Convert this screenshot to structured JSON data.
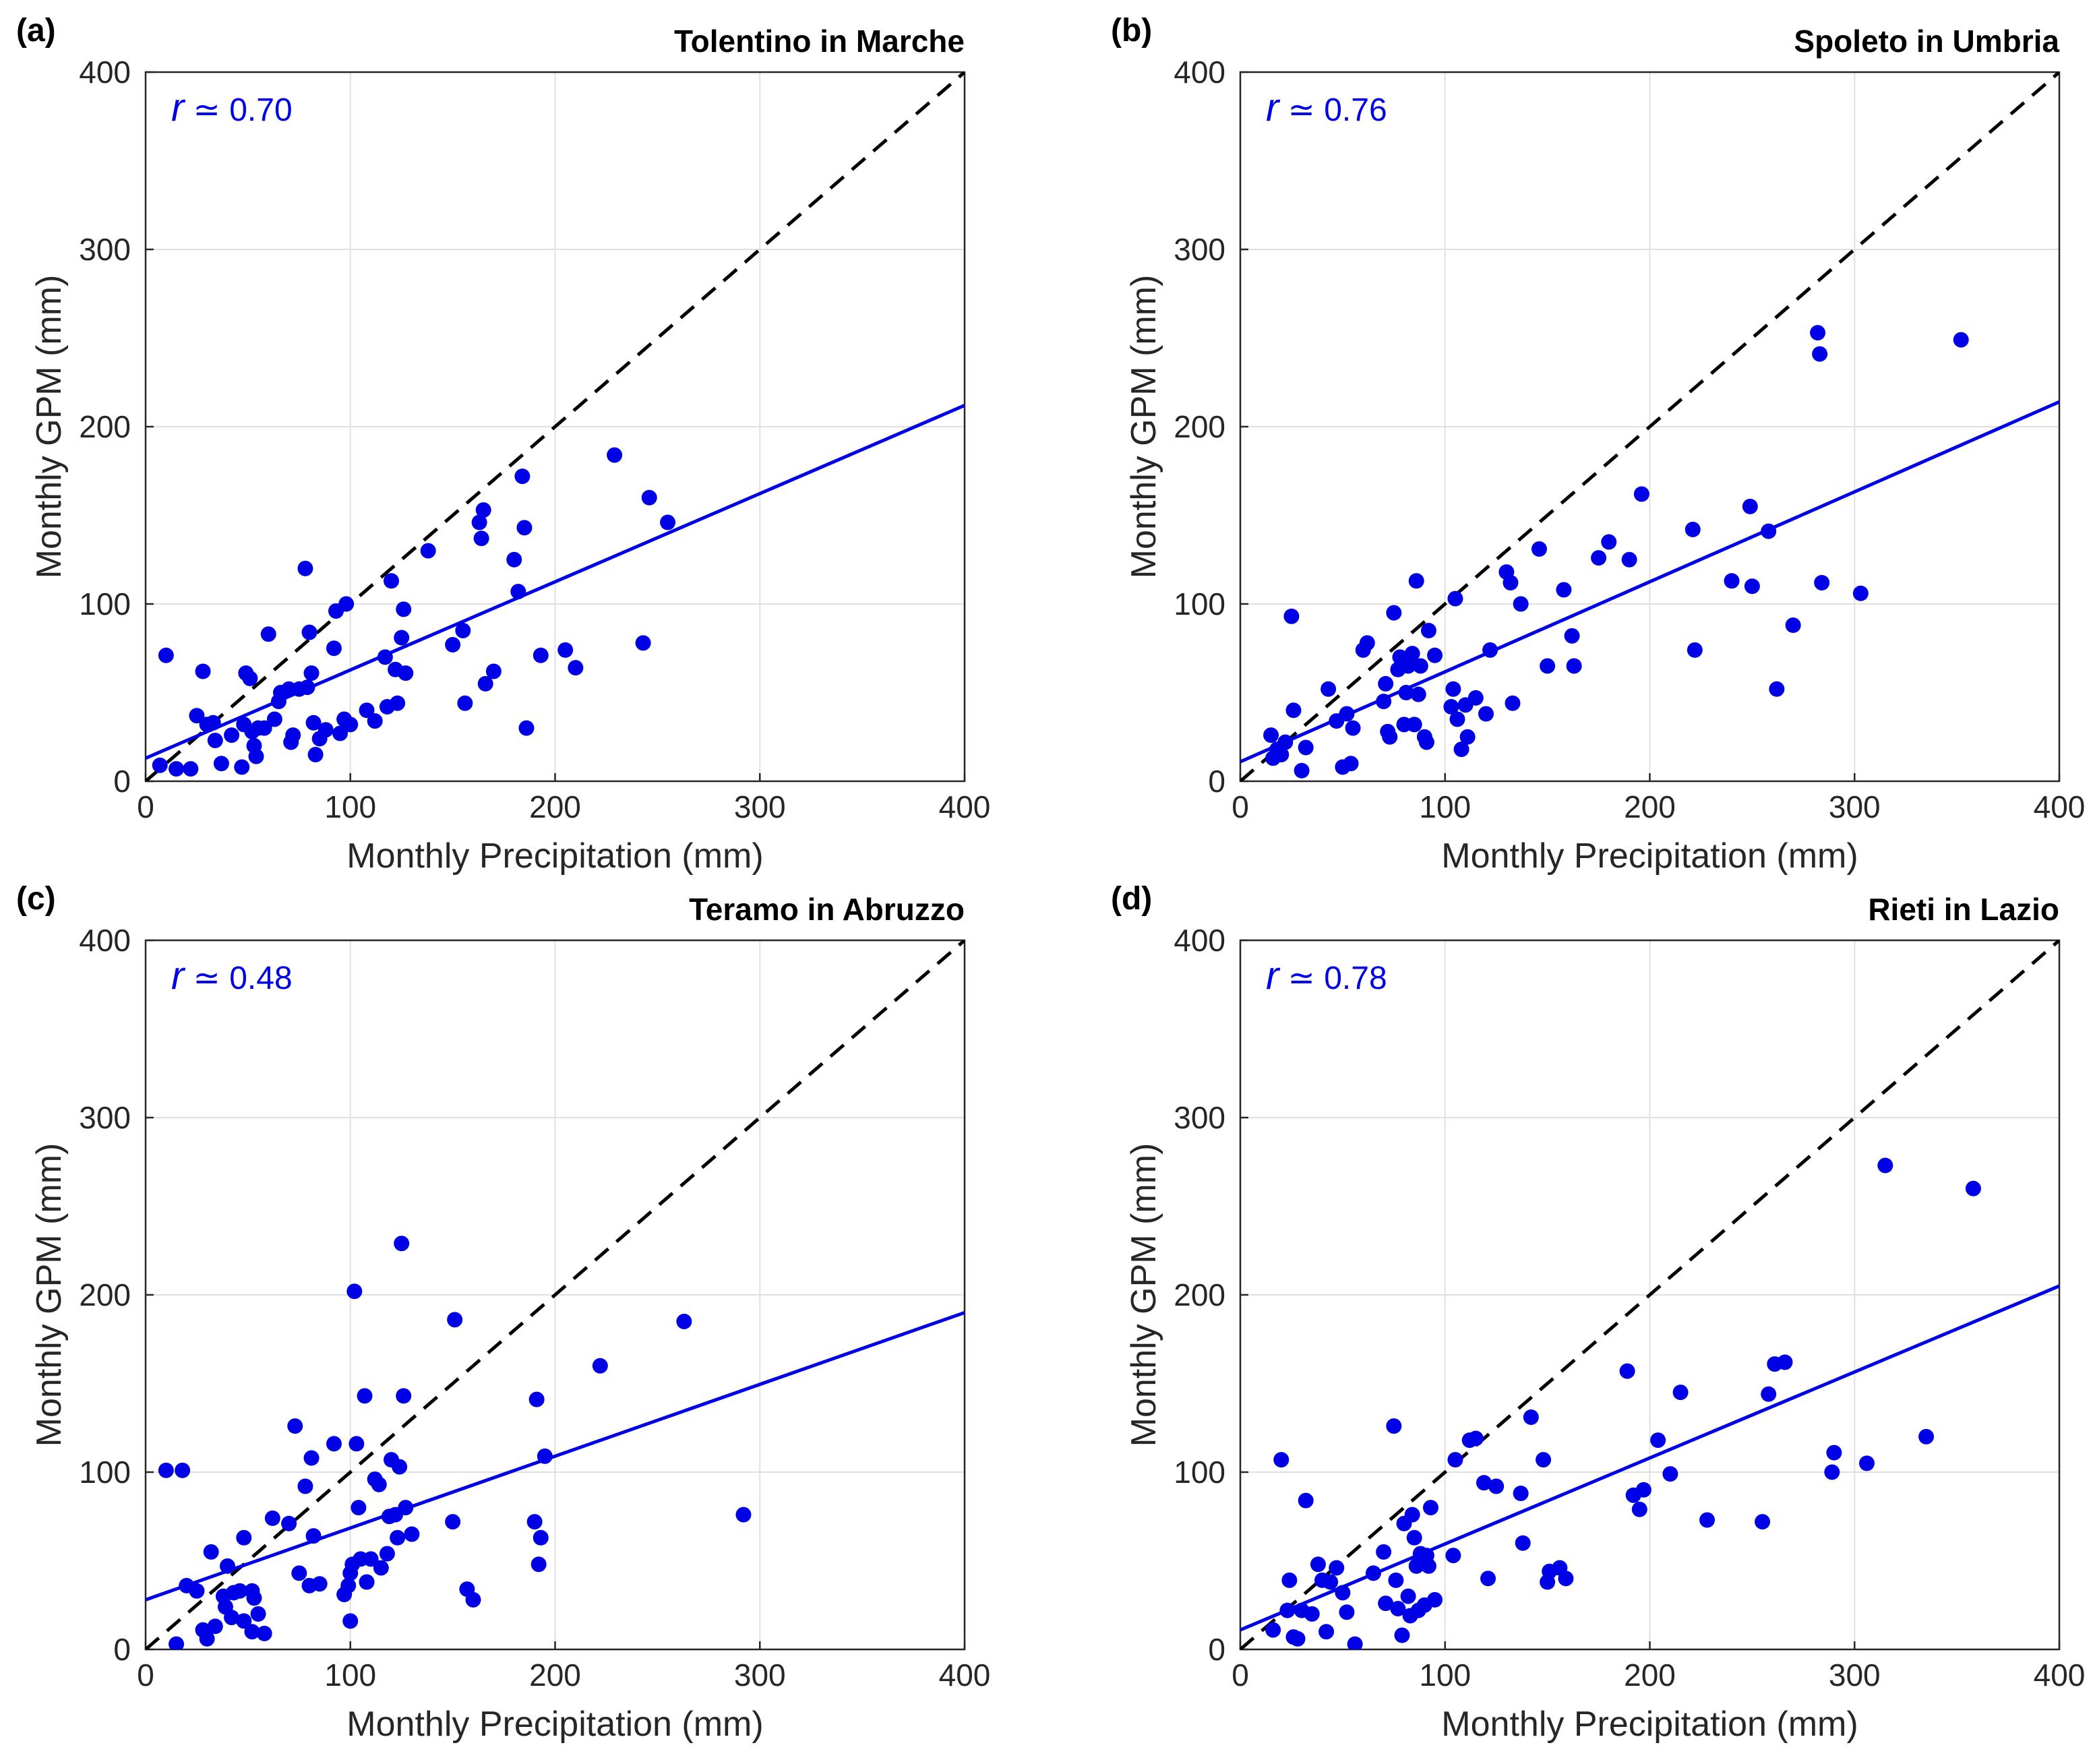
{
  "colors": {
    "points": "#0000e6",
    "fit_line": "#0000e6",
    "identity_line": "#000000",
    "grid": "#e0e0e0",
    "axes": "#262626"
  },
  "chart_data": [
    {
      "type": "scatter",
      "panel_label": "(a)",
      "title": "Tolentino in Marche",
      "xlabel": "Monthly Precipitation (mm)",
      "ylabel": "Monthly GPM (mm)",
      "xlim": [
        0,
        400
      ],
      "ylim": [
        0,
        400
      ],
      "xticks": [
        "0",
        "100",
        "200",
        "300",
        "400"
      ],
      "yticks": [
        "0",
        "100",
        "200",
        "300",
        "400"
      ],
      "grid": true,
      "correlation": {
        "symbol": "r",
        "relation": "≃",
        "value": "0.70"
      },
      "fit_line": {
        "x": [
          0,
          400
        ],
        "y": [
          13,
          212
        ]
      },
      "identity_line": {
        "x": [
          0,
          400
        ],
        "y": [
          0,
          400
        ]
      },
      "points": [
        [
          7,
          9
        ],
        [
          10,
          71
        ],
        [
          15,
          7
        ],
        [
          22,
          7
        ],
        [
          25,
          37
        ],
        [
          28,
          62
        ],
        [
          30,
          32
        ],
        [
          33,
          33
        ],
        [
          34,
          23
        ],
        [
          37,
          10
        ],
        [
          42,
          26
        ],
        [
          47,
          8
        ],
        [
          48,
          32
        ],
        [
          49,
          61
        ],
        [
          51,
          58
        ],
        [
          52,
          28
        ],
        [
          53,
          20
        ],
        [
          54,
          14
        ],
        [
          55,
          30
        ],
        [
          58,
          30
        ],
        [
          60,
          83
        ],
        [
          63,
          35
        ],
        [
          65,
          45
        ],
        [
          66,
          50
        ],
        [
          70,
          52
        ],
        [
          71,
          22
        ],
        [
          72,
          26
        ],
        [
          75,
          52
        ],
        [
          78,
          120
        ],
        [
          79,
          53
        ],
        [
          80,
          84
        ],
        [
          81,
          61
        ],
        [
          82,
          33
        ],
        [
          83,
          15
        ],
        [
          85,
          24
        ],
        [
          88,
          29
        ],
        [
          92,
          75
        ],
        [
          93,
          96
        ],
        [
          95,
          27
        ],
        [
          97,
          35
        ],
        [
          98,
          100
        ],
        [
          100,
          32
        ],
        [
          108,
          40
        ],
        [
          112,
          34
        ],
        [
          117,
          70
        ],
        [
          118,
          42
        ],
        [
          120,
          113
        ],
        [
          122,
          63
        ],
        [
          123,
          44
        ],
        [
          125,
          81
        ],
        [
          126,
          97
        ],
        [
          127,
          61
        ],
        [
          138,
          130
        ],
        [
          150,
          77
        ],
        [
          155,
          85
        ],
        [
          156,
          44
        ],
        [
          163,
          146
        ],
        [
          164,
          137
        ],
        [
          165,
          153
        ],
        [
          166,
          55
        ],
        [
          170,
          62
        ],
        [
          180,
          125
        ],
        [
          182,
          107
        ],
        [
          184,
          172
        ],
        [
          185,
          143
        ],
        [
          186,
          30
        ],
        [
          193,
          71
        ],
        [
          205,
          74
        ],
        [
          210,
          64
        ],
        [
          229,
          184
        ],
        [
          243,
          78
        ],
        [
          246,
          160
        ],
        [
          255,
          146
        ]
      ]
    },
    {
      "type": "scatter",
      "panel_label": "(b)",
      "title": "Spoleto in Umbria",
      "xlabel": "Monthly Precipitation (mm)",
      "ylabel": "Monthly GPM (mm)",
      "xlim": [
        0,
        400
      ],
      "ylim": [
        0,
        400
      ],
      "xticks": [
        "0",
        "100",
        "200",
        "300",
        "400"
      ],
      "yticks": [
        "0",
        "100",
        "200",
        "300",
        "400"
      ],
      "grid": true,
      "correlation": {
        "symbol": "r",
        "relation": "≃",
        "value": "0.76"
      },
      "fit_line": {
        "x": [
          0,
          400
        ],
        "y": [
          11,
          214
        ]
      },
      "identity_line": {
        "x": [
          0,
          400
        ],
        "y": [
          0,
          400
        ]
      },
      "points": [
        [
          15,
          26
        ],
        [
          16,
          13
        ],
        [
          18,
          18
        ],
        [
          20,
          15
        ],
        [
          22,
          22
        ],
        [
          25,
          93
        ],
        [
          26,
          40
        ],
        [
          30,
          6
        ],
        [
          32,
          19
        ],
        [
          43,
          52
        ],
        [
          47,
          34
        ],
        [
          50,
          8
        ],
        [
          52,
          38
        ],
        [
          54,
          10
        ],
        [
          55,
          30
        ],
        [
          60,
          74
        ],
        [
          62,
          78
        ],
        [
          70,
          45
        ],
        [
          71,
          55
        ],
        [
          72,
          28
        ],
        [
          73,
          25
        ],
        [
          75,
          95
        ],
        [
          77,
          63
        ],
        [
          78,
          70
        ],
        [
          80,
          32
        ],
        [
          81,
          50
        ],
        [
          82,
          65
        ],
        [
          84,
          72
        ],
        [
          85,
          32
        ],
        [
          86,
          113
        ],
        [
          87,
          49
        ],
        [
          88,
          65
        ],
        [
          90,
          25
        ],
        [
          91,
          22
        ],
        [
          92,
          85
        ],
        [
          95,
          71
        ],
        [
          103,
          42
        ],
        [
          104,
          52
        ],
        [
          105,
          103
        ],
        [
          106,
          35
        ],
        [
          108,
          18
        ],
        [
          110,
          43
        ],
        [
          111,
          25
        ],
        [
          115,
          47
        ],
        [
          120,
          38
        ],
        [
          122,
          74
        ],
        [
          130,
          118
        ],
        [
          132,
          112
        ],
        [
          133,
          44
        ],
        [
          137,
          100
        ],
        [
          146,
          131
        ],
        [
          150,
          65
        ],
        [
          158,
          108
        ],
        [
          162,
          82
        ],
        [
          163,
          65
        ],
        [
          175,
          126
        ],
        [
          180,
          135
        ],
        [
          190,
          125
        ],
        [
          196,
          162
        ],
        [
          221,
          142
        ],
        [
          222,
          74
        ],
        [
          240,
          113
        ],
        [
          249,
          155
        ],
        [
          250,
          110
        ],
        [
          258,
          141
        ],
        [
          262,
          52
        ],
        [
          270,
          88
        ],
        [
          282,
          253
        ],
        [
          283,
          241
        ],
        [
          284,
          112
        ],
        [
          303,
          106
        ],
        [
          352,
          249
        ]
      ]
    },
    {
      "type": "scatter",
      "panel_label": "(c)",
      "title": "Teramo in Abruzzo",
      "xlabel": "Monthly Precipitation (mm)",
      "ylabel": "Monthly GPM (mm)",
      "xlim": [
        0,
        400
      ],
      "ylim": [
        0,
        400
      ],
      "xticks": [
        "0",
        "100",
        "200",
        "300",
        "400"
      ],
      "yticks": [
        "0",
        "100",
        "200",
        "300",
        "400"
      ],
      "grid": true,
      "correlation": {
        "symbol": "r",
        "relation": "≃",
        "value": "0.48"
      },
      "fit_line": {
        "x": [
          0,
          400
        ],
        "y": [
          28,
          190
        ]
      },
      "identity_line": {
        "x": [
          0,
          400
        ],
        "y": [
          0,
          400
        ]
      },
      "points": [
        [
          10,
          101
        ],
        [
          15,
          3
        ],
        [
          18,
          101
        ],
        [
          20,
          36
        ],
        [
          25,
          33
        ],
        [
          28,
          11
        ],
        [
          30,
          6
        ],
        [
          32,
          55
        ],
        [
          34,
          13
        ],
        [
          38,
          30
        ],
        [
          39,
          24
        ],
        [
          40,
          47
        ],
        [
          42,
          18
        ],
        [
          43,
          32
        ],
        [
          46,
          33
        ],
        [
          48,
          16
        ],
        [
          48,
          63
        ],
        [
          52,
          10
        ],
        [
          52,
          33
        ],
        [
          53,
          29
        ],
        [
          55,
          20
        ],
        [
          58,
          9
        ],
        [
          62,
          74
        ],
        [
          70,
          71
        ],
        [
          73,
          126
        ],
        [
          75,
          43
        ],
        [
          78,
          92
        ],
        [
          80,
          36
        ],
        [
          81,
          108
        ],
        [
          82,
          64
        ],
        [
          85,
          37
        ],
        [
          92,
          116
        ],
        [
          97,
          31
        ],
        [
          99,
          36
        ],
        [
          100,
          16
        ],
        [
          100,
          43
        ],
        [
          101,
          48
        ],
        [
          102,
          202
        ],
        [
          103,
          116
        ],
        [
          104,
          80
        ],
        [
          105,
          51
        ],
        [
          107,
          143
        ],
        [
          108,
          38
        ],
        [
          110,
          51
        ],
        [
          112,
          96
        ],
        [
          114,
          93
        ],
        [
          115,
          46
        ],
        [
          118,
          54
        ],
        [
          119,
          75
        ],
        [
          120,
          107
        ],
        [
          122,
          76
        ],
        [
          123,
          63
        ],
        [
          124,
          103
        ],
        [
          125,
          229
        ],
        [
          126,
          143
        ],
        [
          127,
          80
        ],
        [
          130,
          65
        ],
        [
          150,
          72
        ],
        [
          151,
          186
        ],
        [
          157,
          34
        ],
        [
          160,
          28
        ],
        [
          190,
          72
        ],
        [
          191,
          141
        ],
        [
          192,
          48
        ],
        [
          193,
          63
        ],
        [
          195,
          109
        ],
        [
          222,
          160
        ],
        [
          263,
          185
        ],
        [
          292,
          76
        ]
      ]
    },
    {
      "type": "scatter",
      "panel_label": "(d)",
      "title": "Rieti in Lazio",
      "xlabel": "Monthly Precipitation (mm)",
      "ylabel": "Monthly GPM (mm)",
      "xlim": [
        0,
        400
      ],
      "ylim": [
        0,
        400
      ],
      "xticks": [
        "0",
        "100",
        "200",
        "300",
        "400"
      ],
      "yticks": [
        "0",
        "100",
        "200",
        "300",
        "400"
      ],
      "grid": true,
      "correlation": {
        "symbol": "r",
        "relation": "≃",
        "value": "0.78"
      },
      "fit_line": {
        "x": [
          0,
          400
        ],
        "y": [
          11,
          205
        ]
      },
      "identity_line": {
        "x": [
          0,
          400
        ],
        "y": [
          0,
          400
        ]
      },
      "points": [
        [
          16,
          11
        ],
        [
          20,
          107
        ],
        [
          23,
          22
        ],
        [
          24,
          39
        ],
        [
          26,
          7
        ],
        [
          28,
          6
        ],
        [
          30,
          22
        ],
        [
          32,
          84
        ],
        [
          35,
          20
        ],
        [
          38,
          48
        ],
        [
          40,
          39
        ],
        [
          42,
          10
        ],
        [
          44,
          38
        ],
        [
          47,
          46
        ],
        [
          50,
          32
        ],
        [
          52,
          21
        ],
        [
          56,
          3
        ],
        [
          65,
          43
        ],
        [
          70,
          55
        ],
        [
          71,
          26
        ],
        [
          75,
          126
        ],
        [
          76,
          39
        ],
        [
          77,
          23
        ],
        [
          79,
          8
        ],
        [
          80,
          71
        ],
        [
          82,
          30
        ],
        [
          83,
          19
        ],
        [
          84,
          76
        ],
        [
          85,
          63
        ],
        [
          86,
          47
        ],
        [
          87,
          22
        ],
        [
          88,
          54
        ],
        [
          90,
          25
        ],
        [
          91,
          53
        ],
        [
          92,
          47
        ],
        [
          93,
          80
        ],
        [
          95,
          28
        ],
        [
          104,
          53
        ],
        [
          105,
          107
        ],
        [
          112,
          118
        ],
        [
          115,
          119
        ],
        [
          119,
          94
        ],
        [
          121,
          40
        ],
        [
          125,
          92
        ],
        [
          137,
          88
        ],
        [
          138,
          60
        ],
        [
          142,
          131
        ],
        [
          148,
          107
        ],
        [
          150,
          38
        ],
        [
          151,
          44
        ],
        [
          156,
          46
        ],
        [
          159,
          40
        ],
        [
          189,
          157
        ],
        [
          192,
          87
        ],
        [
          195,
          79
        ],
        [
          197,
          90
        ],
        [
          204,
          118
        ],
        [
          210,
          99
        ],
        [
          215,
          145
        ],
        [
          228,
          73
        ],
        [
          258,
          144
        ],
        [
          261,
          161
        ],
        [
          266,
          162
        ],
        [
          255,
          72
        ],
        [
          289,
          100
        ],
        [
          290,
          111
        ],
        [
          306,
          105
        ],
        [
          315,
          273
        ],
        [
          335,
          120
        ],
        [
          358,
          260
        ]
      ]
    }
  ]
}
